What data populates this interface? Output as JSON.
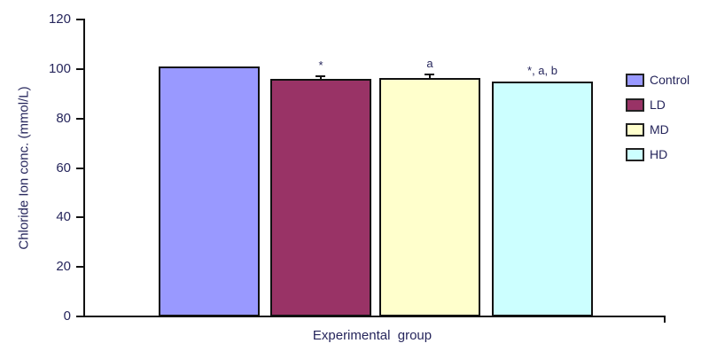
{
  "chart_data": {
    "type": "bar",
    "xlabel": "Experimental  group",
    "ylabel": "Chloride Ion conc. (mmol/L)",
    "ylim": [
      0,
      120
    ],
    "yticks": [
      0,
      20,
      40,
      60,
      80,
      100,
      120
    ],
    "categories": [
      "Control",
      "LD",
      "MD",
      "HD"
    ],
    "series": [
      {
        "name": "Control",
        "value": 101,
        "error": null,
        "annotation": "",
        "color": "#9999FF"
      },
      {
        "name": "LD",
        "value": 96,
        "error": 1.0,
        "annotation": "*",
        "color": "#993366"
      },
      {
        "name": "MD",
        "value": 96.5,
        "error": 1.5,
        "annotation": "a",
        "color": "#FFFFCC"
      },
      {
        "name": "HD",
        "value": 95,
        "error": null,
        "annotation": "*, a, b",
        "color": "#CCFFFF"
      }
    ],
    "legend": {
      "position": "right",
      "items": [
        "Control",
        "LD",
        "MD",
        "HD"
      ]
    },
    "grid": false
  },
  "colors": {
    "text": "#26265c",
    "axis": "#111111",
    "bar_border": "#111111",
    "background": "#ffffff"
  }
}
